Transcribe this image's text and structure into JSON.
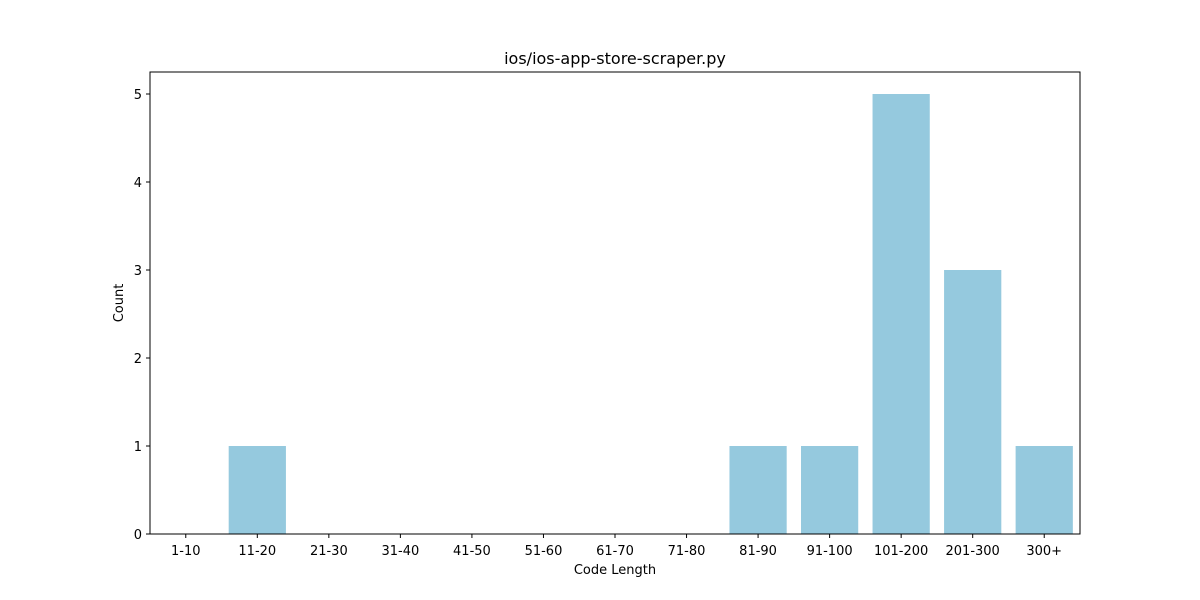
{
  "chart_data": {
    "type": "bar",
    "title": "ios/ios-app-store-scraper.py",
    "xlabel": "Code Length",
    "ylabel": "Count",
    "categories": [
      "1-10",
      "11-20",
      "21-30",
      "31-40",
      "41-50",
      "51-60",
      "61-70",
      "71-80",
      "81-90",
      "91-100",
      "101-200",
      "201-300",
      "300+"
    ],
    "values": [
      0,
      1,
      0,
      0,
      0,
      0,
      0,
      0,
      1,
      1,
      5,
      3,
      1
    ],
    "ylim": [
      0,
      5.25
    ],
    "yticks": [
      "0",
      "1",
      "2",
      "3",
      "4",
      "5"
    ],
    "bar_color": "#95c9de",
    "grid": false,
    "legend": "none"
  }
}
